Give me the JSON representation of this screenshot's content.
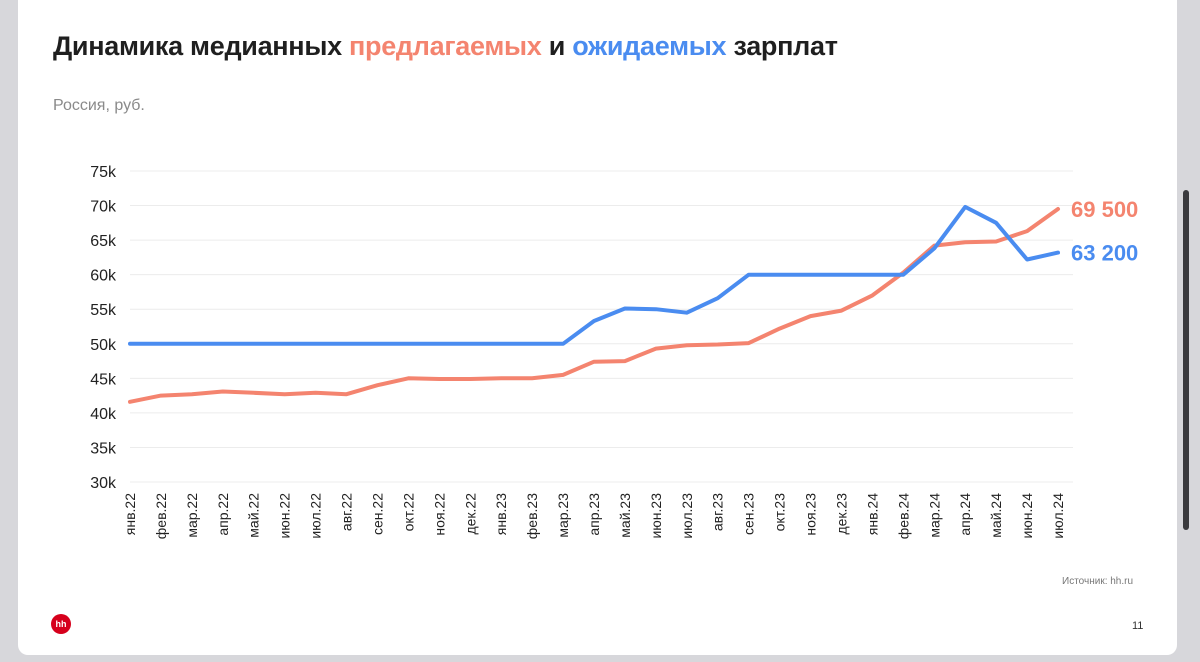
{
  "title": {
    "prefix": "Динамика медианных ",
    "offered": "предлагаемых",
    "middle": " и ",
    "expected": "ожидаемых",
    "suffix": " зарплат"
  },
  "subtitle": "Россия, руб.",
  "source": "Источник: hh.ru",
  "logo_text": "hh",
  "page_number": "11",
  "colors": {
    "offered": "#f4846f",
    "expected": "#4a8cf0",
    "text": "#1f1f1f",
    "grid": "#ececec"
  },
  "chart_data": {
    "type": "line",
    "categories": [
      "янв.22",
      "фев.22",
      "мар.22",
      "апр.22",
      "май.22",
      "июн.22",
      "июл.22",
      "авг.22",
      "сен.22",
      "окт.22",
      "ноя.22",
      "дек.22",
      "янв.23",
      "фев.23",
      "мар.23",
      "апр.23",
      "май.23",
      "июн.23",
      "июл.23",
      "авг.23",
      "сен.23",
      "окт.23",
      "ноя.23",
      "дек.23",
      "янв.24",
      "фев.24",
      "мар.24",
      "апр.24",
      "май.24",
      "июн.24",
      "июл.24"
    ],
    "series": [
      {
        "key": "offered",
        "color": "#f4846f",
        "values": [
          41600,
          42500,
          42700,
          43100,
          42900,
          42700,
          42900,
          42700,
          44000,
          45000,
          44900,
          44900,
          45000,
          45000,
          45500,
          47400,
          47500,
          49300,
          49800,
          49900,
          50100,
          52200,
          54000,
          54800,
          57000,
          60300,
          64200,
          64700,
          64800,
          66300,
          69500
        ],
        "end_label": "69 500"
      },
      {
        "key": "expected",
        "color": "#4a8cf0",
        "values": [
          50000,
          50000,
          50000,
          50000,
          50000,
          50000,
          50000,
          50000,
          50000,
          50000,
          50000,
          50000,
          50000,
          50000,
          50000,
          53300,
          55100,
          55000,
          54500,
          56600,
          60000,
          60000,
          60000,
          60000,
          60000,
          60000,
          63800,
          69800,
          67500,
          62200,
          63200
        ],
        "end_label": "63 200"
      }
    ],
    "y_ticks": [
      "30k",
      "35k",
      "40k",
      "45k",
      "50k",
      "55k",
      "60k",
      "65k",
      "70k",
      "75k"
    ],
    "ylim": [
      30000,
      75000
    ],
    "grid": true,
    "legend": "none"
  }
}
